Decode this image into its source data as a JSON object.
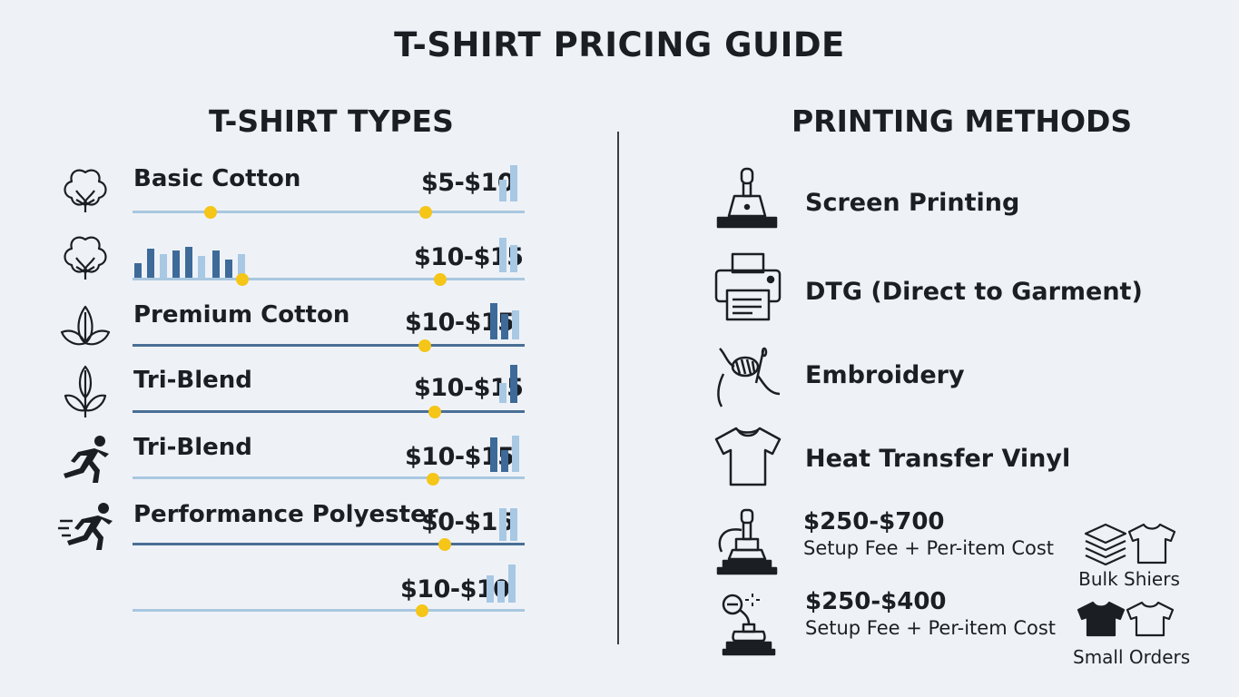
{
  "title": "T-SHIRT PRICING GUIDE",
  "types": {
    "heading": "T-SHIRT TYPES",
    "rows": [
      {
        "icon": "cotton-flower-icon",
        "label": "Basic Cotton",
        "price": "$5-$10"
      },
      {
        "icon": "cotton-flower-icon",
        "label": "",
        "price": "$10-$15"
      },
      {
        "icon": "leaf-icon",
        "label": "Premium Cotton",
        "price": "$10-$15"
      },
      {
        "icon": "leaf-icon",
        "label": "Tri-Blend",
        "price": "$10-$15"
      },
      {
        "icon": "runner-icon",
        "label": "Tri-Blend",
        "price": "$10-$15"
      },
      {
        "icon": "runner-icon",
        "label": "Performance Polyester",
        "price": "$0-$15"
      },
      {
        "icon": "",
        "label": "",
        "price": "$10-$10"
      }
    ]
  },
  "methods": {
    "heading": "PRINTING METHODS",
    "items": [
      {
        "icon": "squeegee-icon",
        "label": "Screen Printing"
      },
      {
        "icon": "printer-icon",
        "label": "DTG (Direct to Garment)"
      },
      {
        "icon": "needle-thread-icon",
        "label": "Embroidery"
      },
      {
        "icon": "tshirt-icon",
        "label": "Heat Transfer Vinyl"
      }
    ],
    "costs": [
      {
        "icon": "press-machine-icon",
        "price": "$250-$700",
        "description": "Setup Fee + Per-item Cost",
        "tag": "Bulk Shiers"
      },
      {
        "icon": "joystick-press-icon",
        "price": "$250-$400",
        "description": "Setup Fee + Per-item Cost",
        "tag": "Small Orders"
      }
    ]
  },
  "colors": {
    "accent_dot": "#f5c518",
    "bar_dark": "#3d6a99",
    "bar_light": "#a8c8e4",
    "line_light": "#a9c7df",
    "line_dark": "#4a6f95"
  }
}
